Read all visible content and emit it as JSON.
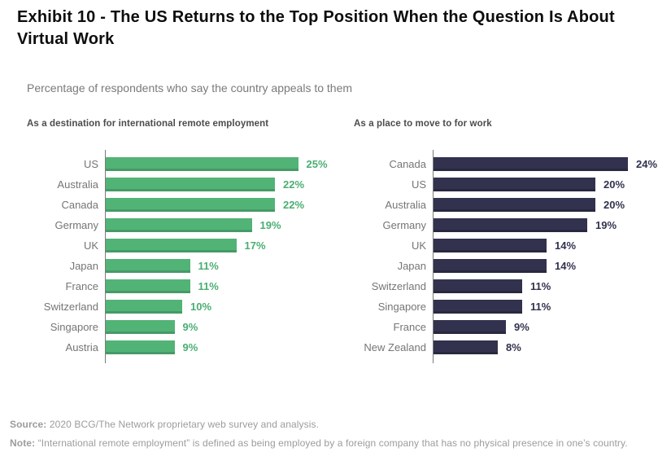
{
  "page": {
    "title": "Exhibit 10 - The US Returns to the Top Position When the Question Is About Virtual Work",
    "subtitle": "Percentage of respondents who say the country appeals to them"
  },
  "footer": {
    "source_label": "Source:",
    "source_text": " 2020 BCG/The Network proprietary web survey and analysis.",
    "note_label": "Note:",
    "note_text": " “International remote employment” is defined as being employed by a foreign company that has no physical presence in one’s country."
  },
  "chart_data": [
    {
      "type": "bar",
      "orientation": "horizontal",
      "title": "As a destination for international remote employment",
      "categories": [
        "US",
        "Australia",
        "Canada",
        "Germany",
        "UK",
        "Japan",
        "France",
        "Switzerland",
        "Singapore",
        "Austria"
      ],
      "values": [
        25,
        22,
        22,
        19,
        17,
        11,
        11,
        10,
        9,
        9
      ],
      "value_suffix": "%",
      "xlim": [
        0,
        25
      ],
      "grid": false,
      "legend": "none",
      "bar_color": "#52B376",
      "bar_shade_color": "#469A67",
      "value_color": "#4AAE72",
      "label_color": "#757575"
    },
    {
      "type": "bar",
      "orientation": "horizontal",
      "title": "As a place to move to for work",
      "categories": [
        "Canada",
        "US",
        "Australia",
        "Germany",
        "UK",
        "Japan",
        "Switzerland",
        "Singapore",
        "France",
        "New Zealand"
      ],
      "values": [
        24,
        20,
        20,
        19,
        14,
        14,
        11,
        11,
        9,
        8
      ],
      "value_suffix": "%",
      "xlim": [
        0,
        24
      ],
      "grid": false,
      "legend": "none",
      "bar_color": "#32324F",
      "bar_shade_color": "#282840",
      "value_color": "#32324F",
      "label_color": "#757575"
    }
  ]
}
